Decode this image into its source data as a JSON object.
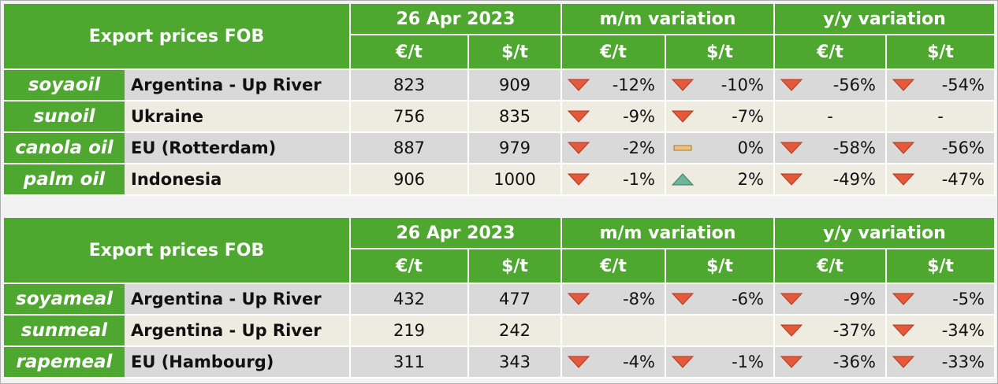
{
  "tables": [
    {
      "header": {
        "title": "Export prices FOB",
        "groups": [
          "26 Apr 2023",
          "m/m variation",
          "y/y variation"
        ],
        "units": [
          "€/t",
          "$/t",
          "€/t",
          "$/t",
          "€/t",
          "$/t"
        ]
      },
      "rows": [
        [
          "soyaoil",
          "Argentina - Up River",
          823,
          909,
          "-12%",
          "-10%",
          "-56%",
          "-54%"
        ],
        [
          "sunoil",
          "Ukraine",
          756,
          835,
          "-9%",
          "-7%",
          "-",
          "-"
        ],
        [
          "canola oil",
          "EU (Rotterdam)",
          887,
          979,
          "-2%",
          "0%",
          "-58%",
          "-56%"
        ],
        [
          "palm oil",
          "Indonesia",
          906,
          1000,
          "-1%",
          "2%",
          "-49%",
          "-47%"
        ]
      ]
    },
    {
      "header": {
        "title": "Export prices FOB",
        "groups": [
          "26 Apr 2023",
          "m/m variation",
          "y/y variation"
        ],
        "units": [
          "€/t",
          "$/t",
          "€/t",
          "$/t",
          "€/t",
          "$/t"
        ]
      },
      "rows": [
        [
          "soyameal",
          "Argentina - Up River",
          432,
          477,
          "-8%",
          "-6%",
          "-9%",
          "-5%"
        ],
        [
          "sunmeal",
          "Argentina - Up River",
          219,
          242,
          null,
          null,
          "-37%",
          "-34%"
        ],
        [
          "rapemeal",
          "EU (Hambourg)",
          311,
          343,
          "-4%",
          "-1%",
          "-36%",
          "-33%"
        ]
      ]
    }
  ]
}
